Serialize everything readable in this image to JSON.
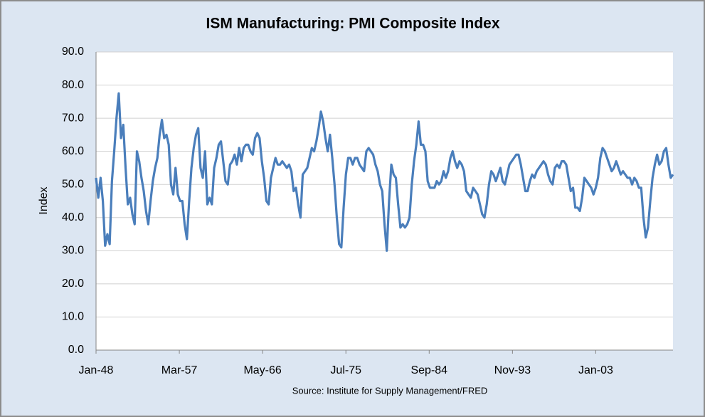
{
  "chart_data": {
    "type": "line",
    "title": "ISM Manufacturing: PMI Composite Index",
    "ylabel": "Index",
    "source": "Source: Institute for Supply Management/FRED",
    "color": "#4a7ebb",
    "grid": true,
    "ylim": [
      0,
      90
    ],
    "yticks": [
      {
        "value": 0,
        "label": "0.0"
      },
      {
        "value": 10,
        "label": "10.0"
      },
      {
        "value": 20,
        "label": "20.0"
      },
      {
        "value": 30,
        "label": "30.0"
      },
      {
        "value": 40,
        "label": "40.0"
      },
      {
        "value": 50,
        "label": "50.0"
      },
      {
        "value": 60,
        "label": "60.0"
      },
      {
        "value": 70,
        "label": "70.0"
      },
      {
        "value": 80,
        "label": "80.0"
      },
      {
        "value": 90,
        "label": "90.0"
      }
    ],
    "xlim": [
      "Jan-48",
      "Jul-11"
    ],
    "xticks": [
      "Jan-48",
      "Mar-57",
      "May-66",
      "Jul-75",
      "Sep-84",
      "Nov-93",
      "Jan-03"
    ],
    "x": [
      "Jan-48",
      "Apr-48",
      "Jul-48",
      "Oct-48",
      "Jan-49",
      "Apr-49",
      "Jul-49",
      "Oct-49",
      "Jan-50",
      "Apr-50",
      "Jul-50",
      "Oct-50",
      "Jan-51",
      "Apr-51",
      "Jul-51",
      "Oct-51",
      "Jan-52",
      "Apr-52",
      "Jul-52",
      "Oct-52",
      "Jan-53",
      "Apr-53",
      "Jul-53",
      "Oct-53",
      "Jan-54",
      "Apr-54",
      "Jul-54",
      "Oct-54",
      "Jan-55",
      "Apr-55",
      "Jul-55",
      "Oct-55",
      "Jan-56",
      "Apr-56",
      "Jul-56",
      "Oct-56",
      "Jan-57",
      "Apr-57",
      "Jul-57",
      "Oct-57",
      "Jan-58",
      "Apr-58",
      "Jul-58",
      "Oct-58",
      "Jan-59",
      "Apr-59",
      "Jul-59",
      "Oct-59",
      "Jan-60",
      "Apr-60",
      "Jul-60",
      "Oct-60",
      "Jan-61",
      "Apr-61",
      "Jul-61",
      "Oct-61",
      "Jan-62",
      "Apr-62",
      "Jul-62",
      "Oct-62",
      "Jan-63",
      "Apr-63",
      "Jul-63",
      "Oct-63",
      "Jan-64",
      "Apr-64",
      "Jul-64",
      "Oct-64",
      "Jan-65",
      "Apr-65",
      "Jul-65",
      "Oct-65",
      "Jan-66",
      "Apr-66",
      "Jul-66",
      "Oct-66",
      "Jan-67",
      "Apr-67",
      "Jul-67",
      "Oct-67",
      "Jan-68",
      "Apr-68",
      "Jul-68",
      "Oct-68",
      "Jan-69",
      "Apr-69",
      "Jul-69",
      "Oct-69",
      "Jan-70",
      "Apr-70",
      "Jul-70",
      "Oct-70",
      "Jan-71",
      "Apr-71",
      "Jul-71",
      "Oct-71",
      "Jan-72",
      "Apr-72",
      "Jul-72",
      "Oct-72",
      "Jan-73",
      "Apr-73",
      "Jul-73",
      "Oct-73",
      "Jan-74",
      "Apr-74",
      "Jul-74",
      "Oct-74",
      "Jan-75",
      "Apr-75",
      "Jul-75",
      "Oct-75",
      "Jan-76",
      "Apr-76",
      "Jul-76",
      "Oct-76",
      "Jan-77",
      "Apr-77",
      "Jul-77",
      "Oct-77",
      "Jan-78",
      "Apr-78",
      "Jul-78",
      "Oct-78",
      "Jan-79",
      "Apr-79",
      "Jul-79",
      "Oct-79",
      "Jan-80",
      "Apr-80",
      "Jul-80",
      "Oct-80",
      "Jan-81",
      "Apr-81",
      "Jul-81",
      "Oct-81",
      "Jan-82",
      "Apr-82",
      "Jul-82",
      "Oct-82",
      "Jan-83",
      "Apr-83",
      "Jul-83",
      "Oct-83",
      "Jan-84",
      "Apr-84",
      "Jul-84",
      "Oct-84",
      "Jan-85",
      "Apr-85",
      "Jul-85",
      "Oct-85",
      "Jan-86",
      "Apr-86",
      "Jul-86",
      "Oct-86",
      "Jan-87",
      "Apr-87",
      "Jul-87",
      "Oct-87",
      "Jan-88",
      "Apr-88",
      "Jul-88",
      "Oct-88",
      "Jan-89",
      "Apr-89",
      "Jul-89",
      "Oct-89",
      "Jan-90",
      "Apr-90",
      "Jul-90",
      "Oct-90",
      "Jan-91",
      "Apr-91",
      "Jul-91",
      "Oct-91",
      "Jan-92",
      "Apr-92",
      "Jul-92",
      "Oct-92",
      "Jan-93",
      "Apr-93",
      "Jul-93",
      "Oct-93",
      "Jan-94",
      "Apr-94",
      "Jul-94",
      "Oct-94",
      "Jan-95",
      "Apr-95",
      "Jul-95",
      "Oct-95",
      "Jan-96",
      "Apr-96",
      "Jul-96",
      "Oct-96",
      "Jan-97",
      "Apr-97",
      "Jul-97",
      "Oct-97",
      "Jan-98",
      "Apr-98",
      "Jul-98",
      "Oct-98",
      "Jan-99",
      "Apr-99",
      "Jul-99",
      "Oct-99",
      "Jan-00",
      "Apr-00",
      "Jul-00",
      "Oct-00",
      "Jan-01",
      "Apr-01",
      "Jul-01",
      "Oct-01",
      "Jan-02",
      "Apr-02",
      "Jul-02",
      "Oct-02",
      "Jan-03",
      "Apr-03",
      "Jul-03",
      "Oct-03",
      "Jan-04",
      "Apr-04",
      "Jul-04",
      "Oct-04",
      "Jan-05",
      "Apr-05",
      "Jul-05",
      "Oct-05",
      "Jan-06",
      "Apr-06",
      "Jul-06",
      "Oct-06",
      "Jan-07",
      "Apr-07",
      "Jul-07",
      "Oct-07",
      "Jan-08",
      "Apr-08",
      "Jul-08",
      "Oct-08",
      "Jan-09",
      "Apr-09",
      "Jul-09",
      "Oct-09",
      "Jan-10",
      "Apr-10",
      "Jul-10",
      "Oct-10",
      "Jan-11",
      "Apr-11",
      "Jul-11"
    ],
    "values": [
      52,
      46,
      52,
      45,
      31.5,
      35,
      32,
      51,
      60,
      70,
      77.5,
      64,
      68,
      55,
      44,
      46,
      41,
      38,
      60,
      57,
      52,
      48,
      42,
      38,
      45,
      51,
      55,
      58,
      65,
      69.5,
      64,
      65,
      62,
      50,
      47,
      55,
      47,
      45,
      45,
      38,
      33.5,
      45,
      55,
      61,
      65,
      67,
      55,
      52,
      60,
      44,
      46,
      44,
      55,
      58,
      62,
      63,
      57,
      51,
      50,
      56,
      57,
      59,
      56,
      61,
      57,
      61,
      62,
      62,
      60,
      59,
      64,
      65.5,
      64,
      57,
      52,
      45,
      44,
      52,
      55,
      58,
      56,
      56,
      57,
      56,
      55,
      56,
      54,
      48,
      49,
      44,
      40,
      53,
      54,
      55,
      58,
      61,
      60,
      63,
      67,
      72,
      69,
      64,
      60,
      65,
      58,
      50,
      40,
      32,
      31,
      43,
      53,
      58,
      58,
      56,
      58,
      58,
      56,
      55,
      54,
      60,
      61,
      60,
      59,
      56,
      54,
      50,
      48,
      38,
      30,
      45,
      56,
      53,
      52,
      44,
      37,
      38,
      37,
      38,
      40,
      50,
      57,
      62,
      69,
      62,
      62,
      60,
      51,
      49,
      49,
      49,
      51,
      50,
      51,
      54,
      52,
      54,
      58,
      60,
      57,
      55,
      57,
      56,
      54,
      48,
      47,
      46,
      49,
      48,
      47,
      44,
      41,
      40,
      44,
      50,
      54,
      53,
      51,
      53,
      55,
      51,
      50,
      53,
      56,
      57,
      58,
      59,
      59,
      56,
      52,
      48,
      48,
      51,
      53,
      52,
      54,
      55,
      56,
      57,
      56,
      53,
      51,
      50,
      55,
      56,
      55,
      57,
      57,
      56,
      52,
      48,
      49,
      43,
      43,
      42,
      46,
      52,
      51,
      50,
      49,
      47,
      49,
      52,
      58,
      61,
      60,
      58,
      56,
      54,
      55,
      57,
      55,
      53,
      54,
      53,
      52,
      52,
      50,
      52,
      51,
      49,
      49,
      40,
      34,
      37,
      45,
      52,
      56,
      59,
      56,
      57,
      60,
      61,
      56,
      52,
      53
    ]
  }
}
